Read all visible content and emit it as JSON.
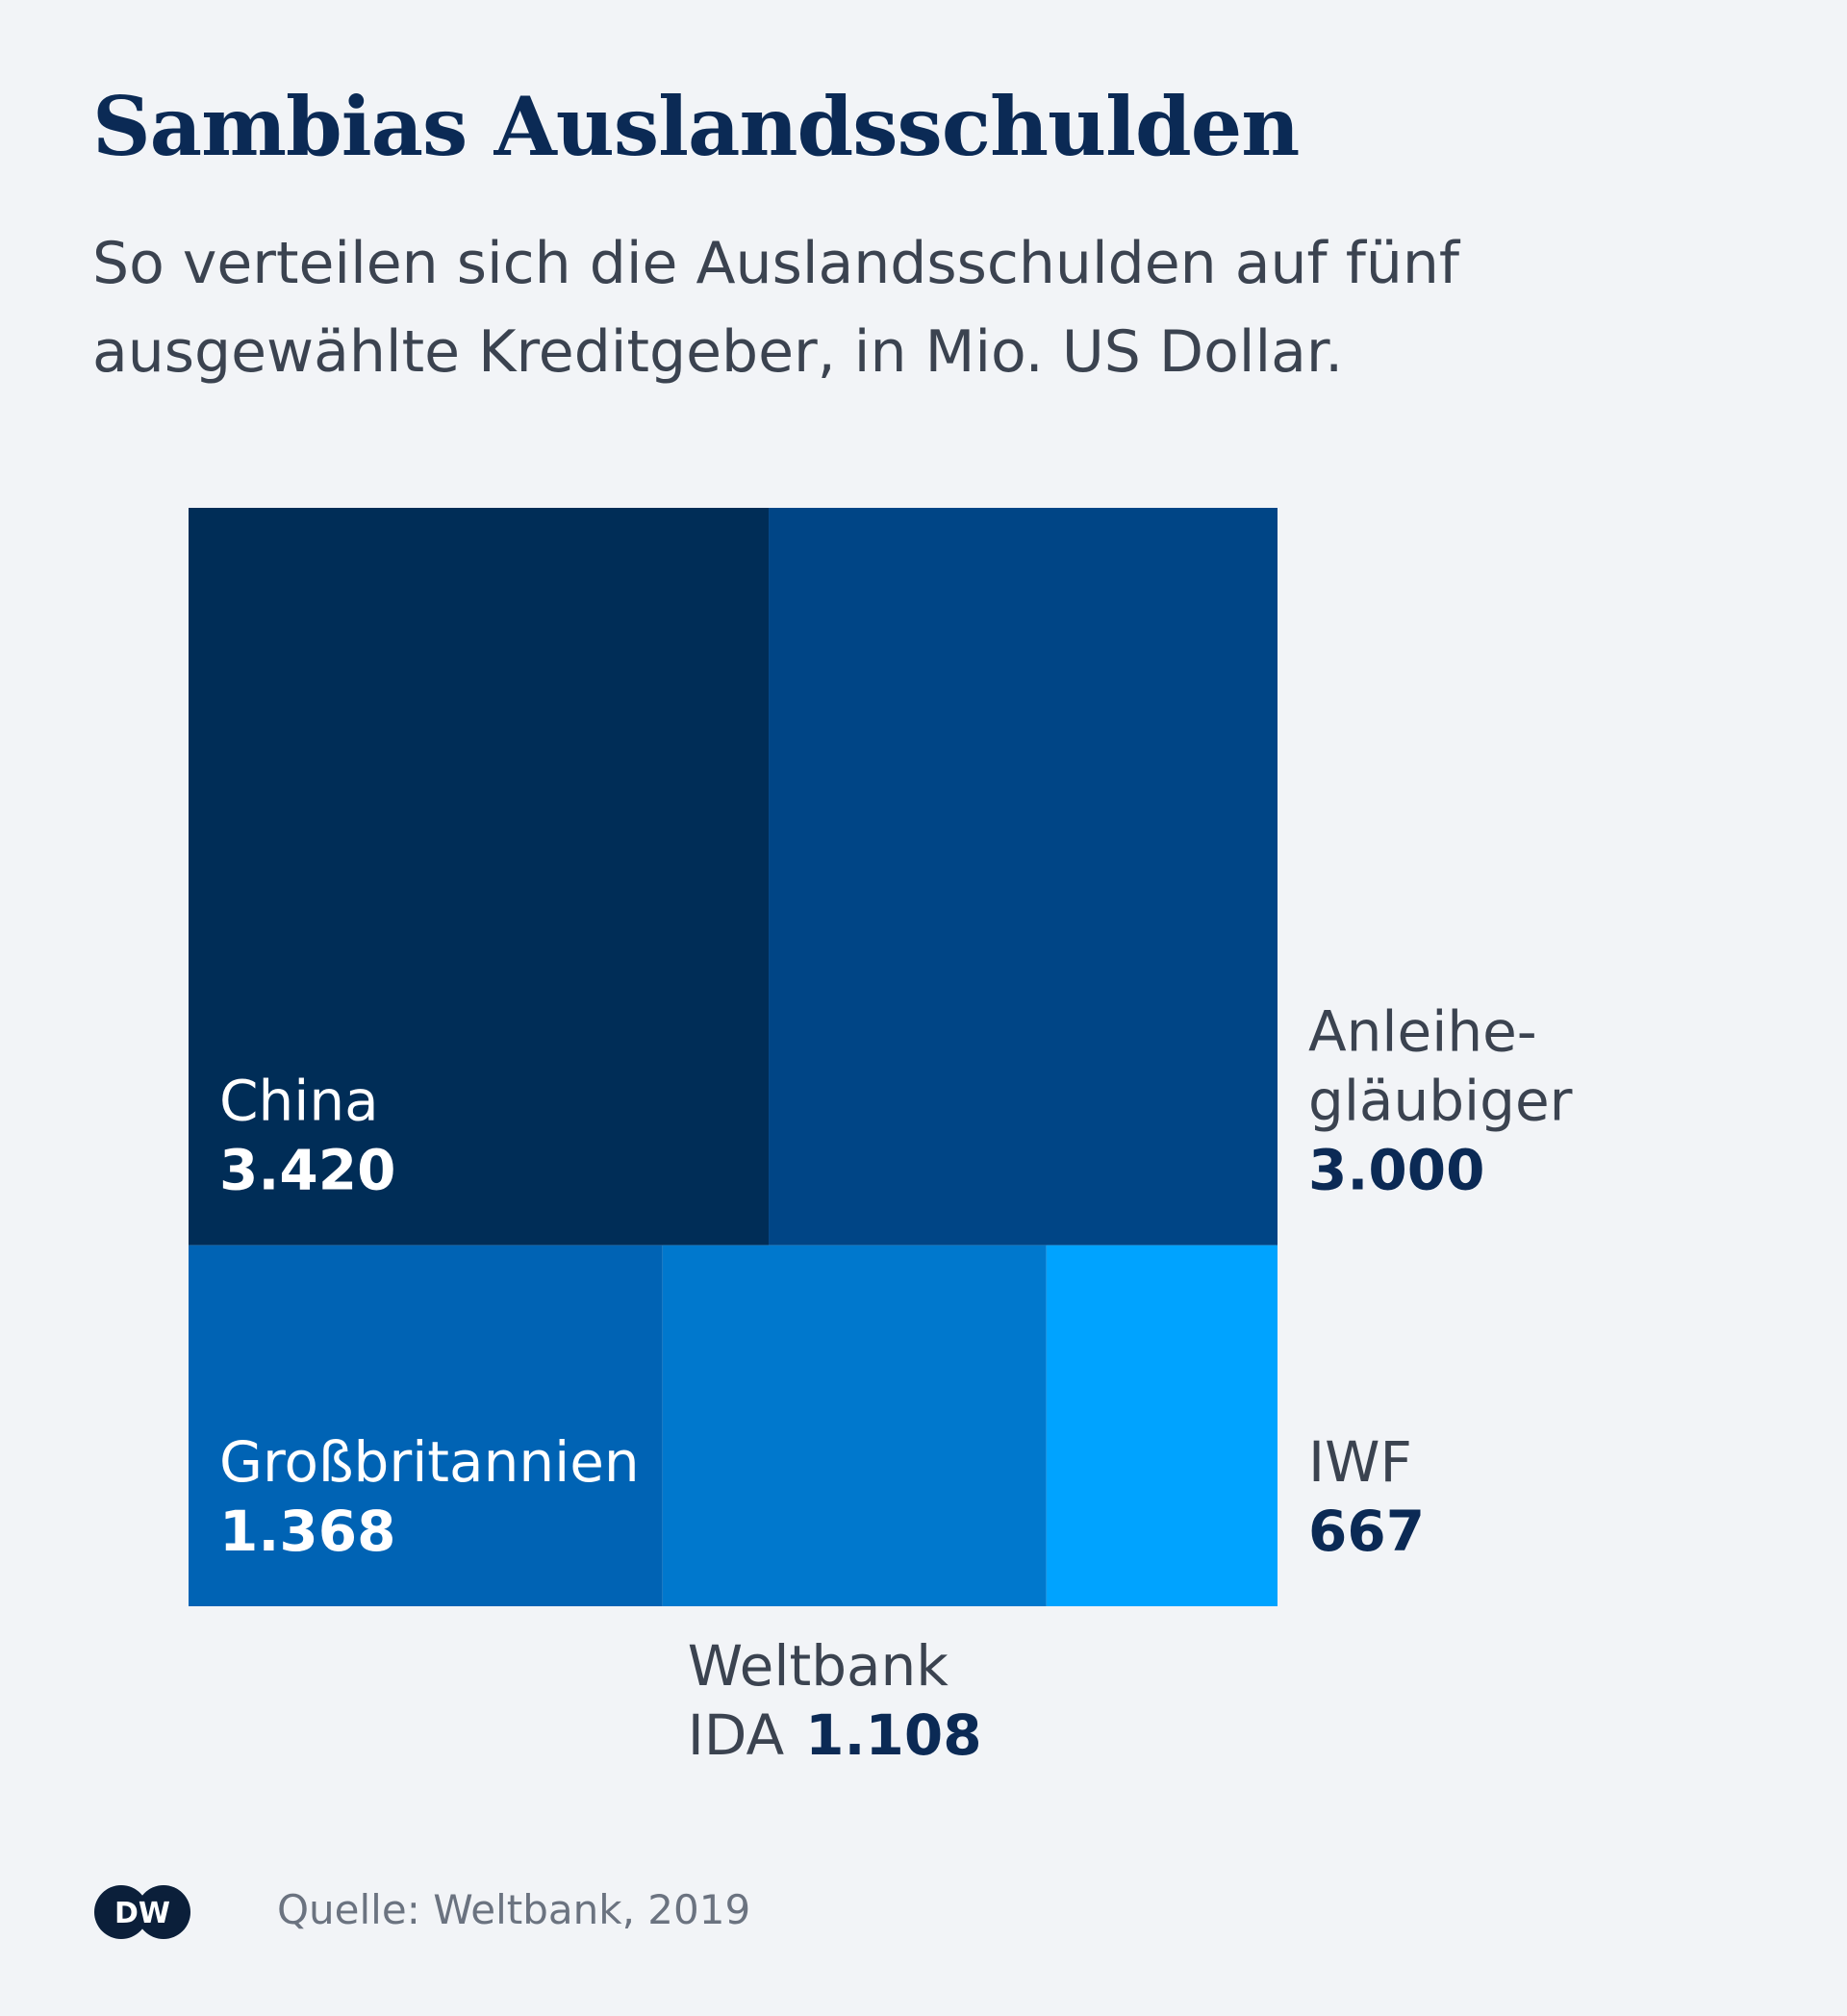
{
  "title": "Sambias Auslandsschulden",
  "subtitle": "So verteilen sich die Auslandsschulden auf fünf ausgewählte Kreditgeber, in Mio. US Dollar.",
  "source": "Quelle: Weltbank, 2019",
  "logo": "DW",
  "chart_data": {
    "type": "treemap",
    "title": "Sambias Auslandsschulden",
    "unit": "Mio. US Dollar",
    "items": [
      {
        "label": "China",
        "value": 3420,
        "value_label": "3.420",
        "color": "#002d57"
      },
      {
        "label": "Anleihegläubiger",
        "label_lines": [
          "Anleihe-",
          "gläubiger"
        ],
        "value": 3000,
        "value_label": "3.000",
        "color": "#004586"
      },
      {
        "label": "Großbritannien",
        "value": 1368,
        "value_label": "1.368",
        "color": "#0063b4"
      },
      {
        "label": "Weltbank IDA",
        "label_lines": [
          "Weltbank",
          "IDA"
        ],
        "value": 1108,
        "value_label": "1.108",
        "color": "#0078cd"
      },
      {
        "label": "IWF",
        "value": 667,
        "value_label": "667",
        "color": "#00a3ff"
      }
    ]
  }
}
